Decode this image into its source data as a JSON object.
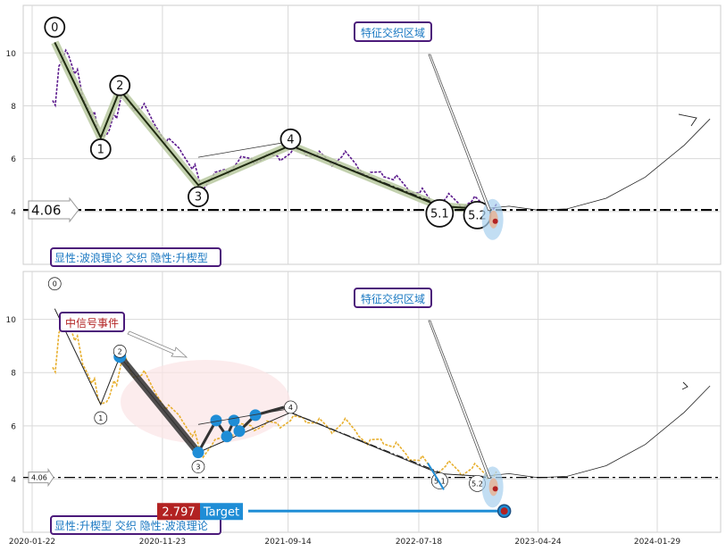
{
  "chart_data": [
    {
      "type": "line",
      "panel": "top",
      "ylim": [
        2.0,
        11.8
      ],
      "yticks": [
        4,
        6,
        8,
        10
      ],
      "grid": true,
      "horizontal_line": {
        "value": 4.06,
        "label": "4.06",
        "style": "dash-dot"
      },
      "price_series": {
        "color": "#5b1a8c",
        "x": [
          "2020-03-10",
          "2020-03-25",
          "2020-04-10",
          "2020-05-01",
          "2020-05-20",
          "2020-06-10",
          "2020-06-25",
          "2020-07-15",
          "2020-08-01",
          "2020-08-20",
          "2020-09-10",
          "2020-10-05",
          "2020-11-01",
          "2020-12-01",
          "2021-01-01",
          "2021-02-01",
          "2021-02-20",
          "2021-03-20",
          "2021-04-20",
          "2021-05-20",
          "2021-06-20",
          "2021-07-20",
          "2021-08-20",
          "2021-09-20",
          "2021-10-20",
          "2021-11-20",
          "2021-12-20",
          "2022-01-20",
          "2022-02-20",
          "2022-03-20",
          "2022-04-20",
          "2022-05-20",
          "2022-06-20",
          "2022-07-20",
          "2022-08-20",
          "2022-09-20",
          "2022-10-20",
          "2022-11-20",
          "2022-12-20",
          "2023-01-10"
        ],
        "y": [
          8.2,
          9.5,
          10.1,
          9.2,
          8.3,
          7.6,
          7.0,
          6.9,
          7.7,
          8.5,
          8.0,
          7.9,
          7.4,
          6.6,
          6.4,
          5.6,
          5.0,
          5.3,
          5.6,
          5.9,
          6.0,
          6.0,
          6.1,
          6.2,
          6.3,
          6.1,
          5.9,
          6.1,
          5.8,
          5.3,
          5.5,
          5.2,
          4.9,
          4.7,
          4.3,
          4.5,
          4.3,
          4.4,
          4.2,
          4.1
        ]
      },
      "wave_points": [
        {
          "label": "0",
          "x": "2020-03-15",
          "y": 10.4
        },
        {
          "label": "1",
          "x": "2020-07-01",
          "y": 6.8
        },
        {
          "label": "2",
          "x": "2020-08-15",
          "y": 8.6
        },
        {
          "label": "3",
          "x": "2021-02-15",
          "y": 5.0
        },
        {
          "label": "4",
          "x": "2021-09-20",
          "y": 6.5
        },
        {
          "label": "5.1",
          "x": "2022-09-05",
          "y": 4.2
        },
        {
          "label": "5.2",
          "x": "2022-12-15",
          "y": 4.1
        }
      ],
      "projection_x": [
        "2022-12-15",
        "2023-02-15",
        "2023-04-24",
        "2023-07-01",
        "2023-10-01",
        "2024-01-01",
        "2024-04-01",
        "2024-06-01"
      ],
      "projection_y": [
        4.1,
        4.2,
        4.05,
        4.1,
        4.5,
        5.3,
        6.5,
        7.5
      ],
      "annotations": [
        "特征交织区域",
        "显性:波浪理论 交织 隐性:升楔型"
      ]
    },
    {
      "type": "line",
      "panel": "bottom",
      "ylim": [
        2.0,
        11.8
      ],
      "yticks": [
        4,
        6,
        8,
        10
      ],
      "grid": true,
      "horizontal_line": {
        "value": 4.06,
        "label": "4.06",
        "style": "dash-dot"
      },
      "price_series": {
        "color": "#e8b030",
        "x": [
          "2020-03-10",
          "2020-03-25",
          "2020-04-10",
          "2020-05-01",
          "2020-05-20",
          "2020-06-10",
          "2020-06-25",
          "2020-07-15",
          "2020-08-01",
          "2020-08-20",
          "2020-09-10",
          "2020-10-05",
          "2020-11-01",
          "2020-12-01",
          "2021-01-01",
          "2021-02-01",
          "2021-02-20",
          "2021-03-20",
          "2021-04-20",
          "2021-05-20",
          "2021-06-20",
          "2021-07-20",
          "2021-08-20",
          "2021-09-20",
          "2021-10-20",
          "2021-11-20",
          "2021-12-20",
          "2022-01-20",
          "2022-02-20",
          "2022-03-20",
          "2022-04-20",
          "2022-05-20",
          "2022-06-20",
          "2022-07-20",
          "2022-08-20",
          "2022-09-20",
          "2022-10-20",
          "2022-11-20",
          "2022-12-20",
          "2023-01-10"
        ],
        "y": [
          8.2,
          9.5,
          10.1,
          9.2,
          8.3,
          7.6,
          7.0,
          6.9,
          7.7,
          8.5,
          8.0,
          7.9,
          7.4,
          6.6,
          6.4,
          5.6,
          5.0,
          5.3,
          5.6,
          5.9,
          6.0,
          6.0,
          6.1,
          6.2,
          6.3,
          6.1,
          5.9,
          6.1,
          5.8,
          5.3,
          5.5,
          5.2,
          4.9,
          4.7,
          4.3,
          4.5,
          4.3,
          4.4,
          4.2,
          4.1
        ]
      },
      "wave_points": [
        {
          "label": "0",
          "x": "2020-03-15",
          "y": 10.4
        },
        {
          "label": "1",
          "x": "2020-07-01",
          "y": 6.8
        },
        {
          "label": "2",
          "x": "2020-08-15",
          "y": 8.6
        },
        {
          "label": "3",
          "x": "2021-02-15",
          "y": 5.0
        },
        {
          "label": "4",
          "x": "2021-09-20",
          "y": 6.5
        },
        {
          "label": "5.1",
          "x": "2022-09-05",
          "y": 4.2
        },
        {
          "label": "5.2",
          "x": "2022-12-15",
          "y": 4.1
        }
      ],
      "target": {
        "label_value": "2.797",
        "label_text": "Target",
        "value": 2.797,
        "x": "2023-01-20"
      },
      "projection_x": [
        "2022-12-15",
        "2023-02-15",
        "2023-04-24",
        "2023-07-01",
        "2023-10-01",
        "2024-01-01",
        "2024-04-01",
        "2024-06-01"
      ],
      "projection_y": [
        4.1,
        4.2,
        4.05,
        4.1,
        4.5,
        5.3,
        6.5,
        7.5
      ],
      "annotations": [
        "特征交织区域",
        "中信号事件",
        "显性:升楔型 交织 隐性:波浪理论"
      ],
      "xticks": [
        "2020-01-22",
        "2020-11-23",
        "2021-09-14",
        "2022-07-18",
        "2023-04-24",
        "2024-01-29"
      ]
    }
  ],
  "labels": {
    "top_region": "特征交织区域",
    "top_footer": "显性:波浪理论 交织 隐性:升楔型",
    "bottom_region": "特征交织区域",
    "bottom_signal": "中信号事件",
    "bottom_footer": "显性:升楔型 交织 隐性:波浪理论",
    "level_top": "4.06",
    "level_bottom": "4.06",
    "target_value": "2.797",
    "target_text": "Target"
  },
  "colors": {
    "purple_series": "#5b1a8c",
    "yellow_series": "#e8b030",
    "label_border": "#4b1a7a",
    "label_text": "#1a78c2",
    "target_red": "#b22222",
    "target_blue": "#1f8dd6",
    "wave_band": "#b9c9a0"
  }
}
